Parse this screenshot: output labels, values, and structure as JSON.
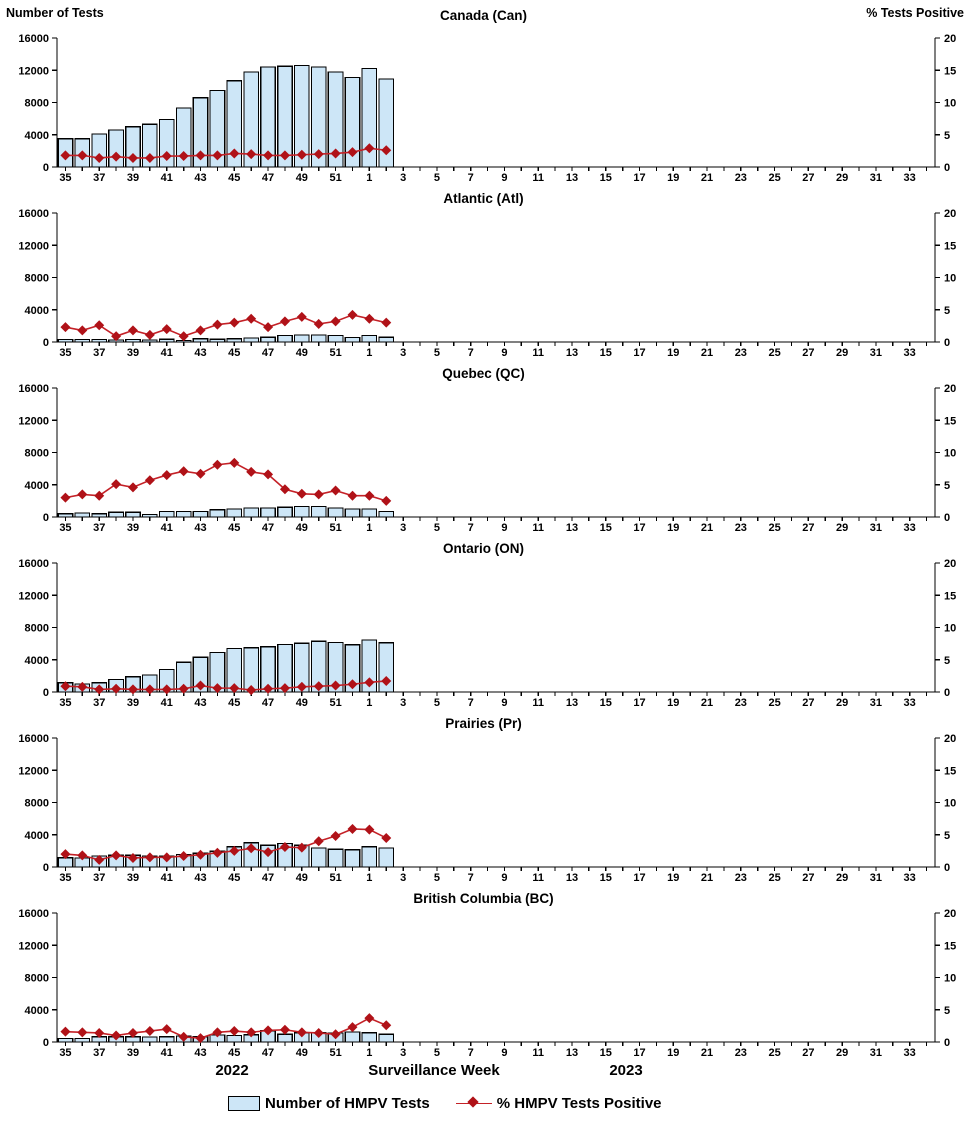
{
  "header": {
    "left_axis_title": "Number of Tests",
    "right_axis_title": "% Tests Positive"
  },
  "footer": {
    "year_left": "2022",
    "axis_title": "Surveillance Week",
    "year_right": "2023"
  },
  "legend": {
    "items": [
      {
        "label": "Number of HMPV Tests",
        "type": "bar"
      },
      {
        "label": "% HMPV Tests Positive",
        "type": "line"
      }
    ]
  },
  "colors": {
    "bar_fill": "#CDE6F7",
    "bar_border": "#000000",
    "line": "#C42127",
    "marker": "#B01218",
    "axis": "#000000"
  },
  "chart_data": {
    "type": "bar+line",
    "left_axis": {
      "label": "Number of Tests",
      "ticks": [
        0,
        4000,
        8000,
        12000,
        16000
      ],
      "ylim": [
        0,
        16000
      ]
    },
    "right_axis": {
      "label": "% Tests Positive",
      "ticks": [
        0,
        5,
        10,
        15,
        20
      ],
      "ylim": [
        0,
        20
      ]
    },
    "week_axis": [
      35,
      36,
      37,
      38,
      39,
      40,
      41,
      42,
      43,
      44,
      45,
      46,
      47,
      48,
      49,
      50,
      51,
      52,
      1,
      2,
      3,
      4,
      5,
      6,
      7,
      8,
      9,
      10,
      11,
      12,
      13,
      14,
      15,
      16,
      17,
      18,
      19,
      20,
      21,
      22,
      23,
      24,
      25,
      26,
      27,
      28,
      29,
      30,
      31,
      32,
      33,
      34
    ],
    "x_weeks": [
      35,
      36,
      37,
      38,
      39,
      40,
      41,
      42,
      43,
      44,
      45,
      46,
      47,
      48,
      49,
      50,
      51,
      52,
      1,
      2
    ],
    "series_names": [
      "Number of HMPV Tests",
      "% HMPV Tests Positive"
    ],
    "grid": false,
    "panels": [
      {
        "title": "Canada (Can)",
        "tests": [
          3500,
          3500,
          4100,
          4600,
          5000,
          5300,
          5900,
          7300,
          8600,
          9500,
          10700,
          11800,
          12400,
          12500,
          12600,
          12400,
          11800,
          11100,
          12200,
          10900
        ],
        "pct_positive": [
          1.8,
          1.8,
          1.4,
          1.6,
          1.4,
          1.4,
          1.7,
          1.7,
          1.8,
          1.8,
          2.1,
          2.0,
          1.8,
          1.8,
          1.9,
          2.0,
          2.1,
          2.3,
          2.9,
          2.6
        ]
      },
      {
        "title": "Atlantic (Atl)",
        "tests": [
          300,
          300,
          300,
          250,
          300,
          250,
          350,
          200,
          400,
          350,
          400,
          500,
          600,
          800,
          850,
          850,
          800,
          550,
          800,
          600
        ],
        "pct_positive": [
          2.3,
          1.8,
          2.6,
          0.9,
          1.8,
          1.1,
          2.0,
          0.9,
          1.8,
          2.7,
          3.0,
          3.6,
          2.3,
          3.2,
          3.9,
          2.8,
          3.2,
          4.2,
          3.6,
          3.0
        ]
      },
      {
        "title": "Quebec (QC)",
        "tests": [
          400,
          500,
          400,
          600,
          600,
          300,
          700,
          700,
          700,
          900,
          1000,
          1100,
          1100,
          1200,
          1300,
          1300,
          1100,
          1000,
          1000,
          700
        ],
        "pct_positive": [
          3.0,
          3.5,
          3.3,
          5.1,
          4.6,
          5.7,
          6.5,
          7.1,
          6.7,
          8.1,
          8.4,
          7.0,
          6.6,
          4.3,
          3.6,
          3.5,
          4.1,
          3.3,
          3.3,
          2.5
        ]
      },
      {
        "title": "Ontario (ON)",
        "tests": [
          1150,
          1000,
          1150,
          1550,
          1900,
          2100,
          2800,
          3700,
          4300,
          4900,
          5400,
          5500,
          5600,
          5900,
          6050,
          6300,
          6150,
          5850,
          6450,
          6100
        ],
        "pct_positive": [
          0.9,
          0.8,
          0.4,
          0.5,
          0.4,
          0.4,
          0.4,
          0.5,
          1.0,
          0.6,
          0.6,
          0.3,
          0.5,
          0.6,
          0.8,
          0.9,
          1.0,
          1.2,
          1.5,
          1.7
        ]
      },
      {
        "title": "Prairies (Pr)",
        "tests": [
          1150,
          1100,
          1350,
          1450,
          1450,
          1350,
          1350,
          1550,
          1700,
          1950,
          2500,
          3000,
          2700,
          2900,
          2700,
          2350,
          2200,
          2150,
          2500,
          2350
        ],
        "pct_positive": [
          2.0,
          1.8,
          1.1,
          1.8,
          1.4,
          1.5,
          1.5,
          1.7,
          1.9,
          2.2,
          2.5,
          2.9,
          2.3,
          3.1,
          3.0,
          4.0,
          4.8,
          5.9,
          5.8,
          4.5
        ]
      },
      {
        "title": "British Columbia (BC)",
        "tests": [
          450,
          450,
          650,
          650,
          650,
          620,
          650,
          760,
          650,
          870,
          800,
          900,
          1400,
          950,
          1150,
          1150,
          1100,
          1250,
          1150,
          950
        ],
        "pct_positive": [
          1.6,
          1.5,
          1.4,
          1.0,
          1.4,
          1.7,
          2.0,
          0.8,
          0.6,
          1.5,
          1.7,
          1.5,
          1.8,
          1.9,
          1.5,
          1.4,
          1.2,
          2.3,
          3.7,
          2.6
        ]
      }
    ]
  }
}
